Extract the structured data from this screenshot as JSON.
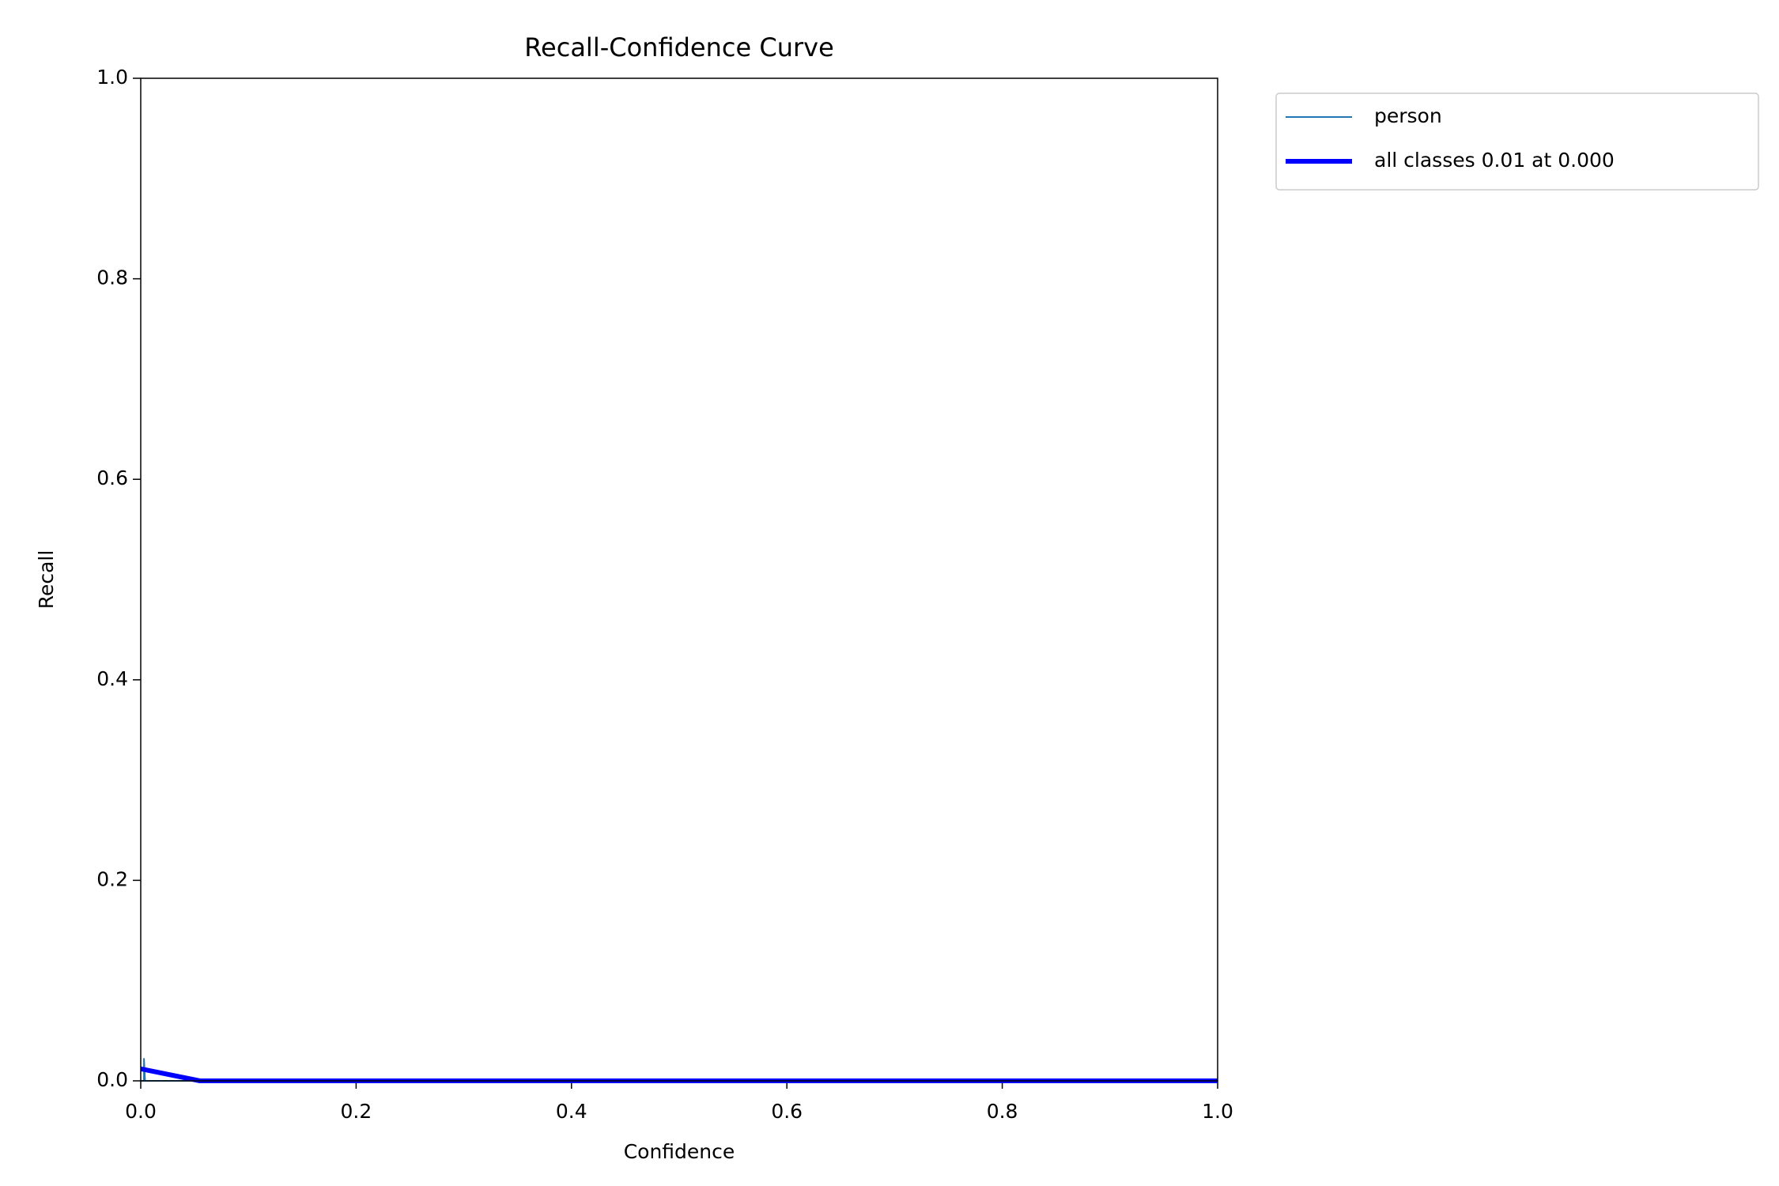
{
  "chart_data": {
    "type": "line",
    "title": "Recall-Confidence Curve",
    "xlabel": "Confidence",
    "ylabel": "Recall",
    "xlim": [
      0,
      1
    ],
    "ylim": [
      0,
      1
    ],
    "xticks": [
      {
        "value": 0,
        "label": "0.0"
      },
      0.2,
      0.4,
      0.6,
      0.8,
      {
        "value": 1,
        "label": "1.0"
      }
    ],
    "yticks": [
      {
        "value": 0,
        "label": "0.0"
      },
      0.2,
      0.4,
      0.6,
      0.8,
      {
        "value": 1,
        "label": "1.0"
      }
    ],
    "grid": false,
    "legend": "outside upper right",
    "series": [
      {
        "name": "person",
        "color": "#1f77b4",
        "linewidth": 2,
        "x": [
          0,
          0.003,
          0.003,
          0.004,
          1
        ],
        "values": [
          0,
          0,
          0.022,
          0,
          0
        ]
      },
      {
        "name": "all classes 0.01 at 0.000",
        "color": "#0000ff",
        "linewidth": 6,
        "x": [
          0,
          0.055,
          1
        ],
        "values": [
          0.012,
          0,
          0
        ]
      }
    ]
  }
}
